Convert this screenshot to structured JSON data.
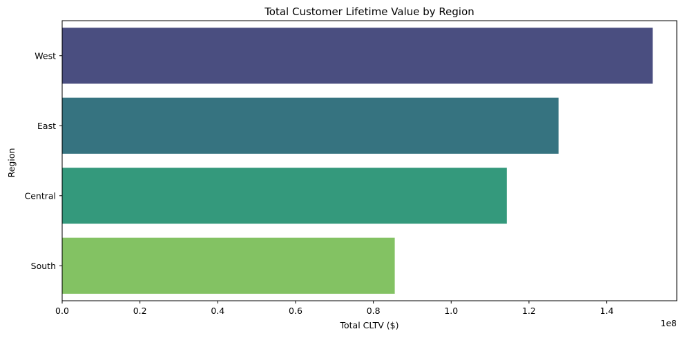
{
  "chart_data": {
    "type": "bar",
    "orientation": "horizontal",
    "title": "Total Customer Lifetime Value by Region",
    "xlabel": "Total CLTV ($)",
    "ylabel": "Region",
    "x_scale_label": "1e8",
    "xlim": [
      0,
      1.58
    ],
    "grid": false,
    "categories": [
      "West",
      "East",
      "Central",
      "South"
    ],
    "values": [
      1.518,
      1.276,
      1.143,
      0.855
    ],
    "value_unit_multiplier": 100000000,
    "colors": [
      "#4a4e80",
      "#367380",
      "#34997c",
      "#83c263"
    ],
    "xticks": [
      0.0,
      0.2,
      0.4,
      0.6,
      0.8,
      1.0,
      1.2,
      1.4
    ],
    "xtick_labels": [
      "0.0",
      "0.2",
      "0.4",
      "0.6",
      "0.8",
      "1.0",
      "1.2",
      "1.4"
    ]
  }
}
